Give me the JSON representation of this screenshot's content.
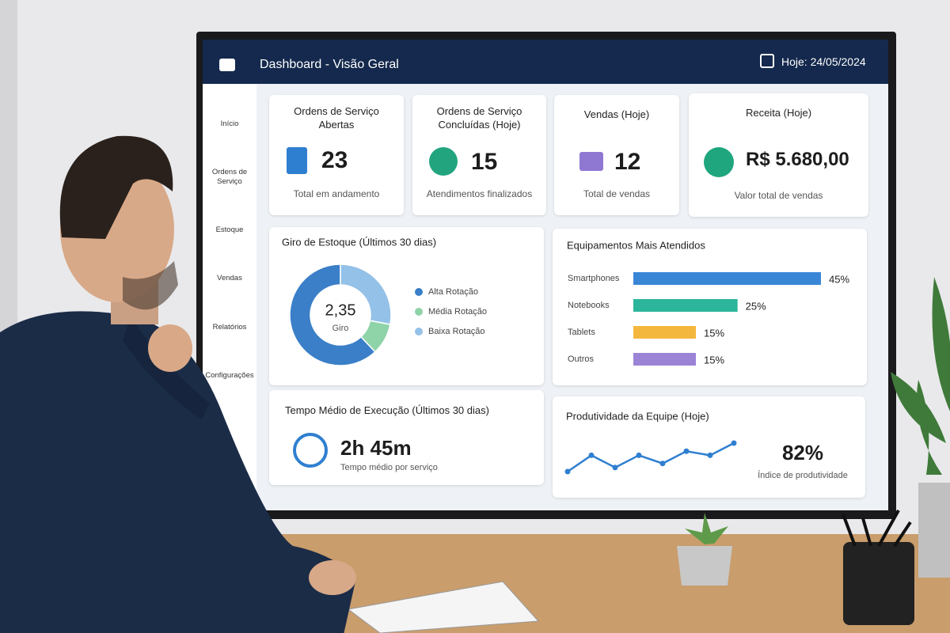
{
  "header": {
    "title": "Dashboard - Visão Geral",
    "date": "Hoje: 24/05/2024"
  },
  "sidebar": [
    "Início",
    "Ordens de Serviço",
    "Estoque",
    "Vendas",
    "Relatórios",
    "Configurações"
  ],
  "kpis": [
    {
      "title": "Ordens de Serviço Abertas",
      "value": 23,
      "caption": "Total em andamento"
    },
    {
      "title": "Ordens de Serviço Concluídas (Hoje)",
      "value": 15,
      "caption": "Atendimentos finalizados"
    },
    {
      "title": "Vendas (Hoje)",
      "value": 12,
      "caption": "Total de vendas"
    },
    {
      "title": "Receita (Hoje)",
      "value": "R$ 5.680,00",
      "caption": "Valor total de vendas"
    }
  ],
  "time_panel": {
    "title": "Tempo Médio de Execução (Últimos 30 dias)",
    "value": "2h 45m",
    "caption": "Tempo médio por serviço"
  },
  "chart_data": [
    {
      "type": "pie",
      "title": "Giro de Estoque (Últimos 30 dias)",
      "center_value": "2,35",
      "center_label": "Giro",
      "categories": [
        "Alta Rotação",
        "Média Rotação",
        "Baixa Rotação"
      ],
      "values": [
        62,
        10,
        28
      ],
      "colors": [
        "#3a7fc8",
        "#8fd3a8",
        "#94c1e8"
      ]
    },
    {
      "type": "bar",
      "title": "Equipamentos Mais Atendidos",
      "categories": [
        "Smartphones",
        "Notebooks",
        "Tablets",
        "Outros"
      ],
      "values": [
        45,
        25,
        15,
        15
      ],
      "value_labels": [
        "45%",
        "25%",
        "15%",
        "15%"
      ],
      "colors": [
        "#3a86d6",
        "#2bb59a",
        "#f4b73e",
        "#9b84d6"
      ]
    },
    {
      "type": "line",
      "title": "Produtividade da Equipe (Hoje)",
      "values": [
        2,
        6,
        3,
        6,
        4,
        7,
        6,
        9
      ],
      "color": "#2f7fd0",
      "kpi_value": "82%",
      "kpi_label": "Índice de produtividade"
    }
  ]
}
